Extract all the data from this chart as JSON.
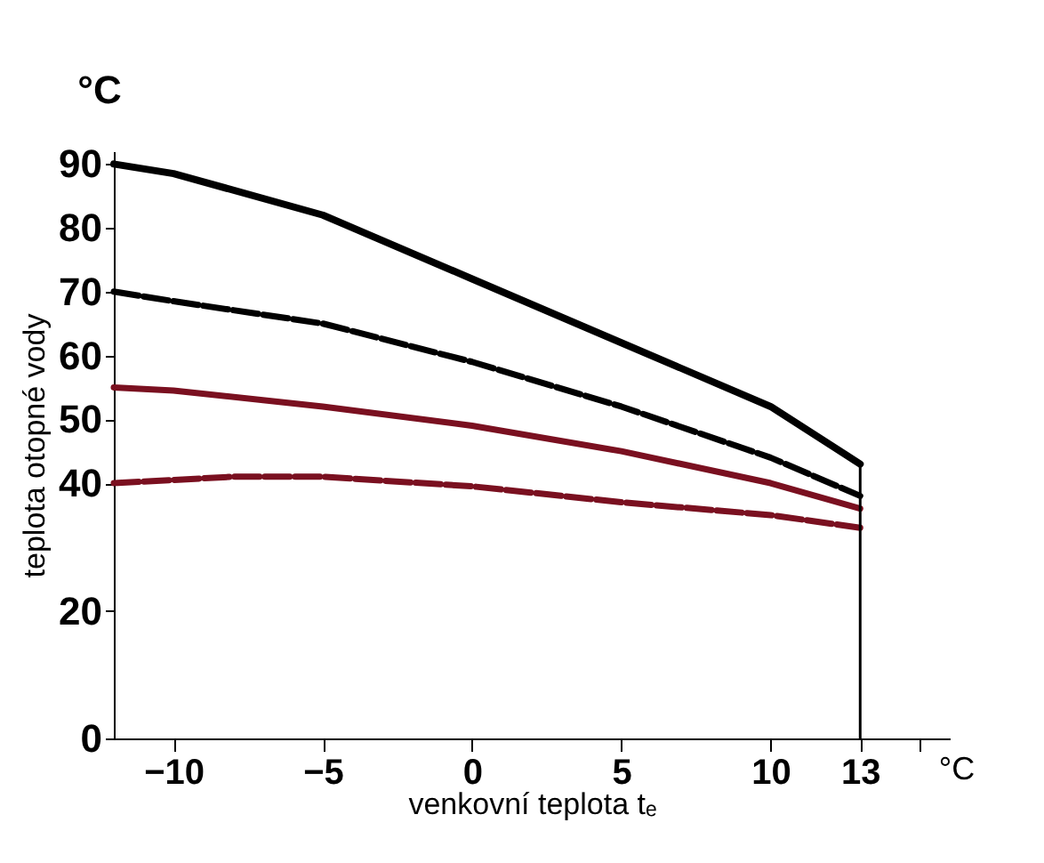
{
  "chart_data": {
    "type": "line",
    "xlabel": "venkovní teplota tₑ",
    "ylabel": "teplota otopné vody",
    "annotations": [
      "°C",
      "°C"
    ],
    "series": [
      {
        "color": "#000000",
        "line_style": "solid",
        "x": [
          -12,
          -10,
          -5,
          0,
          5,
          10,
          13
        ],
        "values": [
          90,
          88.5,
          82,
          72,
          62,
          52,
          43
        ]
      },
      {
        "color": "#000000",
        "line_style": "dashed",
        "x": [
          -12,
          -10,
          -5,
          0,
          5,
          10,
          13
        ],
        "values": [
          70,
          68.5,
          65,
          59,
          52,
          44,
          38
        ]
      },
      {
        "color": "#7a1020",
        "line_style": "solid",
        "x": [
          -12,
          -10,
          -5,
          0,
          5,
          10,
          13
        ],
        "values": [
          55,
          54.5,
          52,
          49,
          45,
          40,
          36
        ]
      },
      {
        "color": "#7a1020",
        "line_style": "dashed",
        "x": [
          -12,
          -8,
          -5,
          0,
          5,
          10,
          13
        ],
        "values": [
          40,
          41,
          41,
          39.5,
          37,
          35,
          33
        ]
      }
    ],
    "ref_lines": [
      {
        "axis": "x",
        "value": 13,
        "color": "#000000"
      }
    ],
    "xlim": [
      -12,
      16
    ],
    "ylim": [
      0,
      92
    ],
    "xticks": [
      -10,
      -5,
      0,
      5,
      10,
      13,
      {
        "value": 15,
        "label": null
      }
    ],
    "yticks": [
      0,
      20,
      40,
      50,
      60,
      70,
      80,
      90
    ],
    "grid": false,
    "marker": "none"
  }
}
